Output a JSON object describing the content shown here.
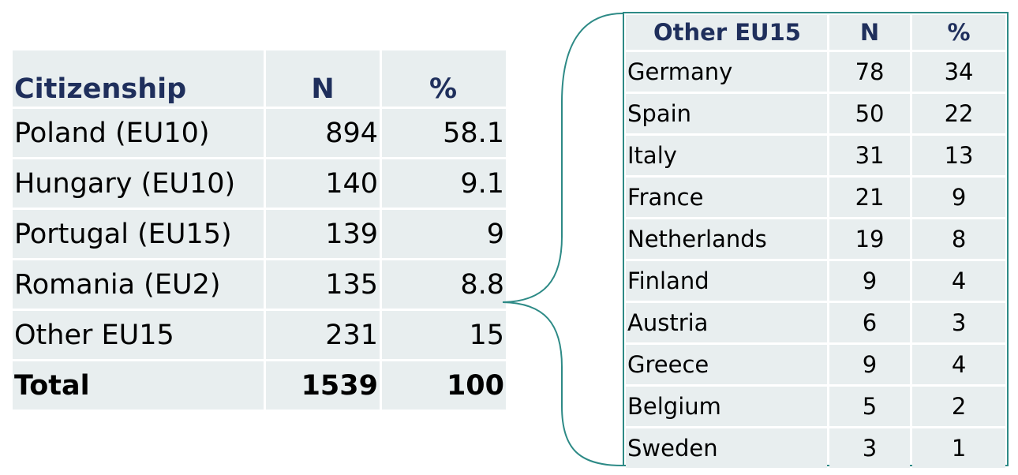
{
  "citizenship_table": {
    "headers": [
      "Citizenship",
      "N",
      "%"
    ],
    "rows": [
      {
        "name": "Poland (EU10)",
        "n": "894",
        "pct": "58.1"
      },
      {
        "name": "Hungary (EU10)",
        "n": "140",
        "pct": "9.1"
      },
      {
        "name": "Portugal (EU15)",
        "n": "139",
        "pct": "9"
      },
      {
        "name": "Romania (EU2)",
        "n": "135",
        "pct": "8.8"
      },
      {
        "name": "Other EU15",
        "n": "231",
        "pct": "15"
      }
    ],
    "total": {
      "name": "Total",
      "n": "1539",
      "pct": "100"
    }
  },
  "other_eu15_table": {
    "headers": [
      "Other EU15",
      "N",
      "%"
    ],
    "rows": [
      {
        "name": "Germany",
        "n": "78",
        "pct": "34"
      },
      {
        "name": "Spain",
        "n": "50",
        "pct": "22"
      },
      {
        "name": "Italy",
        "n": "31",
        "pct": "13"
      },
      {
        "name": "France",
        "n": "21",
        "pct": "9"
      },
      {
        "name": "Netherlands",
        "n": "19",
        "pct": "8"
      },
      {
        "name": "Finland",
        "n": "9",
        "pct": "4"
      },
      {
        "name": "Austria",
        "n": "6",
        "pct": "3"
      },
      {
        "name": "Greece",
        "n": "9",
        "pct": "4"
      },
      {
        "name": "Belgium",
        "n": "5",
        "pct": "2"
      },
      {
        "name": "Sweden",
        "n": "3",
        "pct": "1"
      }
    ]
  },
  "colors": {
    "cell_background": "#e8eeef",
    "header_text": "#1f2f5c",
    "accent": "#2d8a86"
  }
}
